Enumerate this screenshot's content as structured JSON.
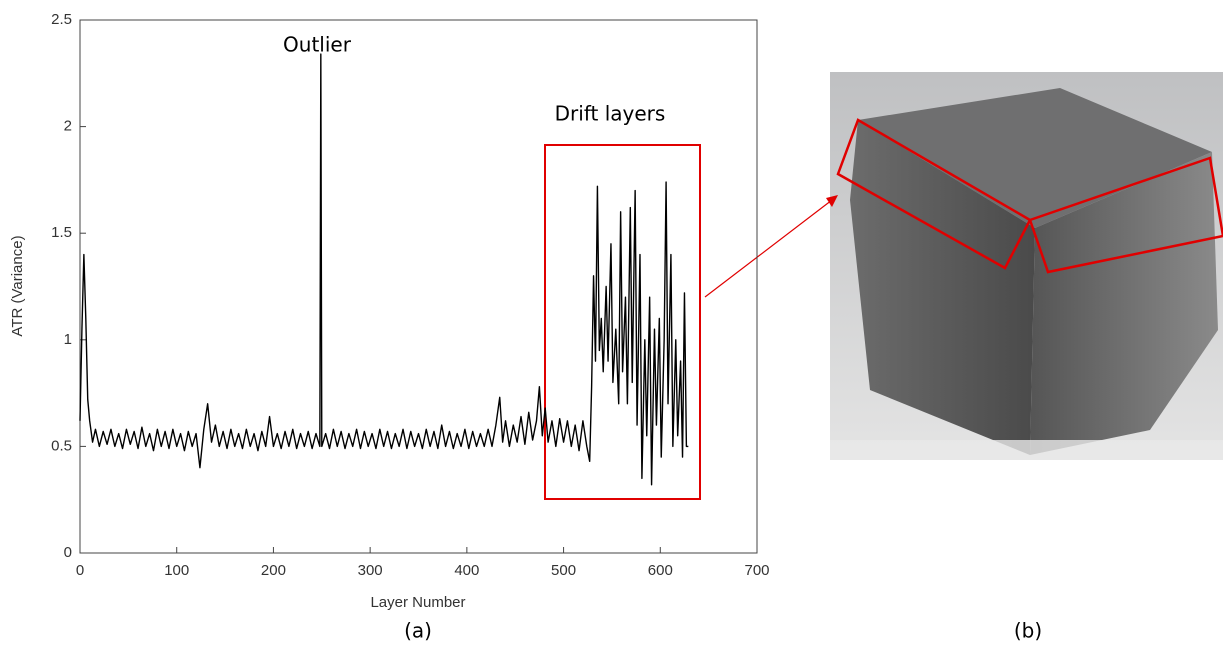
{
  "chart_data": {
    "type": "line",
    "xlabel": "Layer Number",
    "ylabel": "ATR (Variance)",
    "annotations": [
      "Outlier",
      "Drift layers"
    ],
    "panel_labels": [
      "(a)",
      "(b)"
    ],
    "xlim": [
      0,
      700
    ],
    "xticks": [
      0,
      100,
      200,
      300,
      400,
      500,
      600,
      700
    ],
    "ylim": [
      0,
      2.5
    ],
    "yticks": [
      0,
      0.5,
      1,
      1.5,
      2,
      2.5
    ],
    "grid": false,
    "x": [
      0,
      2,
      4,
      6,
      8,
      10,
      13,
      16,
      20,
      24,
      28,
      32,
      36,
      40,
      44,
      48,
      52,
      56,
      60,
      64,
      68,
      72,
      76,
      80,
      84,
      88,
      92,
      96,
      100,
      104,
      108,
      112,
      116,
      120,
      124,
      128,
      132,
      136,
      140,
      144,
      148,
      152,
      156,
      160,
      164,
      168,
      172,
      176,
      180,
      184,
      188,
      192,
      196,
      200,
      204,
      208,
      212,
      216,
      220,
      224,
      228,
      232,
      236,
      240,
      244,
      248,
      249,
      250,
      254,
      258,
      262,
      266,
      270,
      274,
      278,
      282,
      286,
      290,
      294,
      298,
      302,
      306,
      310,
      314,
      318,
      322,
      326,
      330,
      334,
      338,
      342,
      346,
      350,
      354,
      358,
      362,
      366,
      370,
      374,
      378,
      382,
      386,
      390,
      394,
      398,
      402,
      406,
      410,
      414,
      418,
      422,
      426,
      430,
      434,
      437,
      440,
      444,
      448,
      452,
      456,
      460,
      464,
      468,
      472,
      475,
      478,
      481,
      484,
      488,
      492,
      496,
      500,
      504,
      508,
      512,
      516,
      520,
      524,
      527,
      529,
      531,
      533,
      535,
      537,
      539,
      541,
      544,
      546,
      549,
      551,
      554,
      557,
      559,
      561,
      564,
      566,
      569,
      571,
      574,
      576,
      579,
      581,
      584,
      586,
      589,
      591,
      594,
      596,
      599,
      601,
      604,
      606,
      608,
      611,
      613,
      616,
      618,
      621,
      623,
      625,
      627,
      629
    ],
    "series": [
      {
        "name": "ATR",
        "color": "#000000",
        "values": [
          0.62,
          1.05,
          1.4,
          1.1,
          0.72,
          0.62,
          0.52,
          0.58,
          0.5,
          0.57,
          0.51,
          0.58,
          0.5,
          0.56,
          0.49,
          0.58,
          0.51,
          0.57,
          0.49,
          0.59,
          0.5,
          0.56,
          0.48,
          0.58,
          0.5,
          0.57,
          0.49,
          0.58,
          0.5,
          0.56,
          0.48,
          0.57,
          0.5,
          0.56,
          0.4,
          0.58,
          0.7,
          0.52,
          0.6,
          0.5,
          0.57,
          0.49,
          0.58,
          0.5,
          0.56,
          0.49,
          0.58,
          0.5,
          0.56,
          0.48,
          0.57,
          0.5,
          0.64,
          0.5,
          0.56,
          0.49,
          0.57,
          0.5,
          0.58,
          0.49,
          0.56,
          0.5,
          0.57,
          0.49,
          0.56,
          0.5,
          2.34,
          0.5,
          0.56,
          0.49,
          0.58,
          0.5,
          0.57,
          0.49,
          0.56,
          0.5,
          0.58,
          0.49,
          0.57,
          0.5,
          0.56,
          0.49,
          0.58,
          0.5,
          0.57,
          0.49,
          0.56,
          0.5,
          0.58,
          0.49,
          0.57,
          0.5,
          0.56,
          0.49,
          0.58,
          0.5,
          0.57,
          0.49,
          0.6,
          0.5,
          0.57,
          0.49,
          0.56,
          0.5,
          0.58,
          0.49,
          0.57,
          0.5,
          0.56,
          0.5,
          0.58,
          0.5,
          0.6,
          0.73,
          0.52,
          0.62,
          0.5,
          0.6,
          0.52,
          0.64,
          0.51,
          0.66,
          0.53,
          0.62,
          0.78,
          0.55,
          0.68,
          0.52,
          0.62,
          0.5,
          0.63,
          0.52,
          0.62,
          0.5,
          0.6,
          0.48,
          0.62,
          0.5,
          0.43,
          0.78,
          1.3,
          0.9,
          1.72,
          0.95,
          1.1,
          0.85,
          1.25,
          0.9,
          1.45,
          0.8,
          1.05,
          0.7,
          1.6,
          0.85,
          1.2,
          0.7,
          1.62,
          0.8,
          1.7,
          0.6,
          1.4,
          0.35,
          1.0,
          0.55,
          1.2,
          0.32,
          1.05,
          0.6,
          1.1,
          0.45,
          1.0,
          1.74,
          0.7,
          1.4,
          0.5,
          1.0,
          0.55,
          0.9,
          0.45,
          1.22,
          0.5,
          0.5
        ]
      }
    ]
  }
}
